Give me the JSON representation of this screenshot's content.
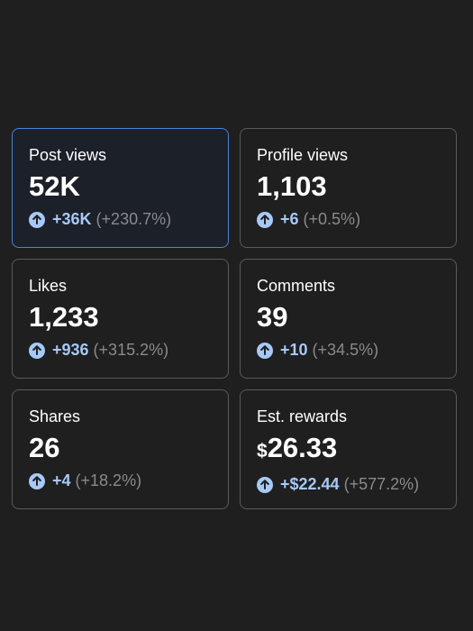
{
  "cards": [
    {
      "label": "Post views",
      "value": "52K",
      "delta": "+36K",
      "pct": "(+230.7%)"
    },
    {
      "label": "Profile views",
      "value": "1,103",
      "delta": "+6",
      "pct": "(+0.5%)"
    },
    {
      "label": "Likes",
      "value": "1,233",
      "delta": "+936",
      "pct": "(+315.2%)"
    },
    {
      "label": "Comments",
      "value": "39",
      "delta": "+10",
      "pct": "(+34.5%)"
    },
    {
      "label": "Shares",
      "value": "26",
      "delta": "+4",
      "pct": "(+18.2%)"
    },
    {
      "label": "Est. rewards",
      "currency": "$",
      "value": "26.33",
      "delta": "+$22.44",
      "pct": "(+577.2%)"
    }
  ],
  "selected_card": "Post views",
  "colors": {
    "background": "#1f1f1f",
    "card_border": "#5a5a5a",
    "selected_border": "#4a84d8",
    "selected_background": "#1c2029",
    "accent_blue": "#a7c9f7",
    "muted_text": "#8a8a8a"
  },
  "icons": {
    "trend": "arrow-up-circle-icon"
  }
}
